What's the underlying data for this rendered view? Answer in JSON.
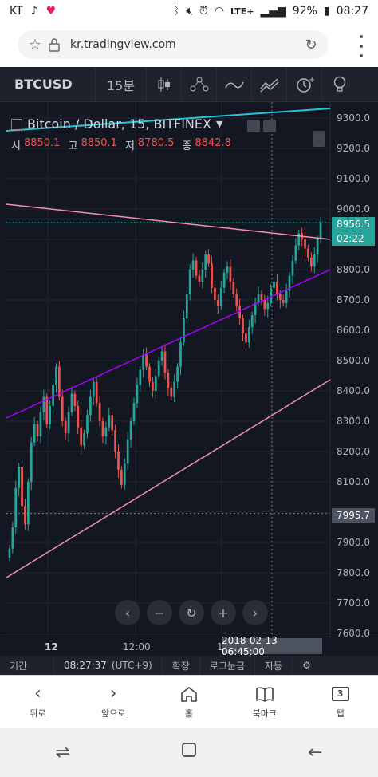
{
  "status_bar": {
    "carrier": "KT",
    "network": "LTE+",
    "battery": "92%",
    "time": "08:27"
  },
  "browser": {
    "url": "kr.tradingview.com"
  },
  "toolbar": {
    "symbol": "BTCUSD",
    "interval": "15분"
  },
  "chart": {
    "title": "Bitcoin / Dollar, 15, BITFINEX",
    "ohlc": [
      {
        "label": "시",
        "value": "8850.1"
      },
      {
        "label": "고",
        "value": "8850.1"
      },
      {
        "label": "저",
        "value": "8780.5"
      },
      {
        "label": "종",
        "value": "8842.8"
      }
    ],
    "price_axis": [
      "9300.0",
      "9200.0",
      "9100.0",
      "9000.0",
      "8900.0",
      "8800.0",
      "8700.0",
      "8600.0",
      "8500.0",
      "8400.0",
      "8300.0",
      "8200.0",
      "8100.0",
      "8000.0",
      "7900.0",
      "7800.0",
      "7700.0",
      "7600.0"
    ],
    "current_price": "8956.5",
    "countdown": "02:22",
    "crosshair_price": "7995.7",
    "crosshair_time": "2018-02-13 06:45:00",
    "time_axis": [
      "12",
      "12:00",
      "1"
    ],
    "colors": {
      "up": "#26a69a",
      "down": "#ef5350",
      "cyan_line": "#26c6da",
      "pink_line": "#f48fb1",
      "purple_line": "#aa00ff",
      "background": "#131722"
    }
  },
  "chart_bar": {
    "range": "기간",
    "clock": "08:27:37",
    "timezone": "(UTC+9)",
    "zoom": "확장",
    "log": "로그눈금",
    "auto": "자동"
  },
  "browser_nav": {
    "back": "뒤로",
    "forward": "앞으로",
    "home": "홈",
    "bookmarks": "북마크",
    "tabs": "탭",
    "tab_count": "3"
  }
}
